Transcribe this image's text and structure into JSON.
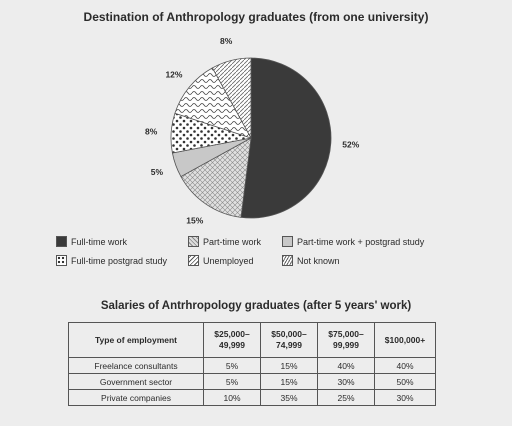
{
  "chart_data": [
    {
      "type": "pie",
      "title": "Destination of Anthropology graduates (from one university)",
      "slices": [
        {
          "label": "Full-time work",
          "value": 52,
          "display": "52%",
          "color": "#3a3a3a"
        },
        {
          "label": "Unemployed",
          "value": 15,
          "display": "15%",
          "color": "#ffffff"
        },
        {
          "label": "Part-time work + postgrad study",
          "value": 5,
          "display": "5%",
          "color": "#c8c8c8"
        },
        {
          "label": "Full-time postgrad study",
          "value": 8,
          "display": "8%",
          "color": "#ffffff"
        },
        {
          "label": "Part-time work",
          "value": 12,
          "display": "12%",
          "color": "#dddddd"
        },
        {
          "label": "Not known",
          "value": 8,
          "display": "8%",
          "color": "#ffffff"
        }
      ],
      "legend": [
        "Full-time work",
        "Part-time work",
        "Part-time work + postgrad study",
        "Full-time postgrad study",
        "Unemployed",
        "Not known"
      ]
    },
    {
      "type": "table",
      "title": "Salaries of Antrhropology graduates (after 5 years' work)",
      "columns": [
        "Type of employment",
        "$25,000–\n49,999",
        "$50,000–\n74,999",
        "$75,000–\n99,999",
        "$100,000+"
      ],
      "rows": [
        [
          "Freelance consultants",
          "5%",
          "15%",
          "40%",
          "40%"
        ],
        [
          "Government sector",
          "5%",
          "15%",
          "30%",
          "50%"
        ],
        [
          "Private companies",
          "10%",
          "35%",
          "25%",
          "30%"
        ]
      ]
    }
  ]
}
